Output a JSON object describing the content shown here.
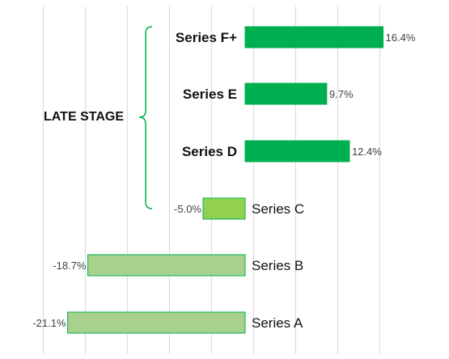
{
  "chart_data": {
    "type": "bar",
    "orientation": "horizontal",
    "categories": [
      "Series F+",
      "Series E",
      "Series D",
      "Series C",
      "Series B",
      "Series A"
    ],
    "values": [
      16.4,
      9.7,
      12.4,
      -5.0,
      -18.7,
      -21.1
    ],
    "value_labels": [
      "16.4%",
      "9.7%",
      "12.4%",
      "-5.0%",
      "-18.7%",
      "-21.1%"
    ],
    "bold_categories": [
      "Series F+",
      "Series E",
      "Series D"
    ],
    "bar_colors": [
      "#00b050",
      "#00b050",
      "#00b050",
      "#92d050",
      "#a9d18e",
      "#a9d18e"
    ],
    "bar_border": "#00b050",
    "group": {
      "label": "LATE STAGE",
      "color": "#00b050"
    },
    "xlim": [
      -24,
      18
    ],
    "grid": "vertical",
    "legend": "none"
  }
}
